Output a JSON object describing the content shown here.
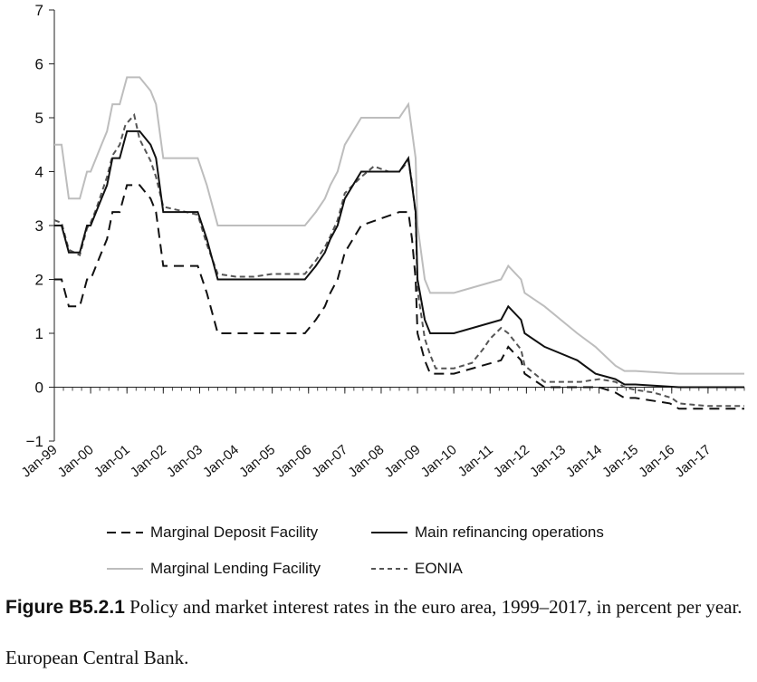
{
  "chart_data": {
    "type": "line",
    "title": "",
    "xlabel": "",
    "ylabel": "",
    "ylim": [
      -1,
      7
    ],
    "yticks": [
      -1,
      0,
      1,
      2,
      3,
      4,
      5,
      6,
      7
    ],
    "xlim": [
      1999.0,
      2018.0
    ],
    "xtick_labels": [
      "Jan-99",
      "Jan-00",
      "Jan-01",
      "Jan-02",
      "Jan-03",
      "Jan-04",
      "Jan-05",
      "Jan-06",
      "Jan-07",
      "Jan-08",
      "Jan-09",
      "Jan-10",
      "Jan-11",
      "Jan-12",
      "Jan-13",
      "Jan-14",
      "Jan-15",
      "Jan-16",
      "Jan-17"
    ],
    "xtick_values": [
      1999,
      2000,
      2001,
      2002,
      2003,
      2004,
      2005,
      2006,
      2007,
      2008,
      2009,
      2010,
      2011,
      2012,
      2013,
      2014,
      2015,
      2016,
      2017
    ],
    "grid": false,
    "legend_position": "bottom",
    "series": [
      {
        "name": "Marginal Deposit Facility",
        "color": "#111111",
        "style": "longdash",
        "x": [
          1999.0,
          1999.2,
          1999.4,
          1999.7,
          1999.9,
          2000.0,
          2000.15,
          2000.3,
          2000.45,
          2000.6,
          2000.8,
          2001.0,
          2001.35,
          2001.65,
          2001.8,
          2002.0,
          2002.95,
          2003.2,
          2003.5,
          2004.0,
          2005.9,
          2006.2,
          2006.45,
          2006.6,
          2006.8,
          2007.0,
          2007.45,
          2008.5,
          2008.75,
          2008.85,
          2008.95,
          2009.0,
          2009.2,
          2009.35,
          2010.0,
          2011.3,
          2011.5,
          2011.85,
          2011.95,
          2012.5,
          2013.5,
          2014.0,
          2014.45,
          2014.7,
          2015.0,
          2015.95,
          2016.2,
          2018.0
        ],
        "y": [
          2.0,
          2.0,
          1.5,
          1.5,
          2.0,
          2.0,
          2.25,
          2.5,
          2.75,
          3.25,
          3.25,
          3.75,
          3.75,
          3.5,
          3.25,
          2.25,
          2.25,
          1.75,
          1.0,
          1.0,
          1.0,
          1.25,
          1.5,
          1.75,
          2.0,
          2.5,
          3.0,
          3.25,
          3.25,
          2.75,
          2.0,
          1.0,
          0.5,
          0.25,
          0.25,
          0.5,
          0.75,
          0.5,
          0.25,
          0.0,
          0.0,
          0.0,
          -0.1,
          -0.2,
          -0.2,
          -0.3,
          -0.4,
          -0.4
        ]
      },
      {
        "name": "Main refinancing operations",
        "color": "#111111",
        "style": "solid",
        "x": [
          1999.0,
          1999.2,
          1999.4,
          1999.7,
          1999.9,
          2000.0,
          2000.15,
          2000.3,
          2000.45,
          2000.6,
          2000.8,
          2001.0,
          2001.35,
          2001.65,
          2001.8,
          2002.0,
          2002.95,
          2003.2,
          2003.5,
          2004.0,
          2005.9,
          2006.2,
          2006.45,
          2006.6,
          2006.8,
          2007.0,
          2007.45,
          2008.5,
          2008.75,
          2008.85,
          2008.95,
          2009.0,
          2009.2,
          2009.35,
          2010.0,
          2011.3,
          2011.5,
          2011.85,
          2011.95,
          2012.5,
          2013.4,
          2013.9,
          2014.45,
          2014.7,
          2015.0,
          2016.2,
          2018.0
        ],
        "y": [
          3.0,
          3.0,
          2.5,
          2.5,
          3.0,
          3.0,
          3.25,
          3.5,
          3.75,
          4.25,
          4.25,
          4.75,
          4.75,
          4.5,
          4.25,
          3.25,
          3.25,
          2.75,
          2.0,
          2.0,
          2.0,
          2.25,
          2.5,
          2.75,
          3.0,
          3.5,
          4.0,
          4.0,
          4.25,
          3.75,
          3.25,
          2.0,
          1.25,
          1.0,
          1.0,
          1.25,
          1.5,
          1.25,
          1.0,
          0.75,
          0.5,
          0.25,
          0.15,
          0.05,
          0.05,
          0.0,
          0.0
        ]
      },
      {
        "name": "Marginal Lending Facility",
        "color": "#bdbdbd",
        "style": "solid",
        "x": [
          1999.0,
          1999.2,
          1999.4,
          1999.7,
          1999.9,
          2000.0,
          2000.15,
          2000.3,
          2000.45,
          2000.6,
          2000.8,
          2001.0,
          2001.35,
          2001.65,
          2001.8,
          2002.0,
          2002.95,
          2003.2,
          2003.5,
          2004.0,
          2005.9,
          2006.2,
          2006.45,
          2006.6,
          2006.8,
          2007.0,
          2007.45,
          2008.5,
          2008.75,
          2008.85,
          2008.95,
          2009.0,
          2009.2,
          2009.35,
          2010.0,
          2011.3,
          2011.5,
          2011.85,
          2011.95,
          2012.5,
          2013.4,
          2013.9,
          2014.45,
          2014.7,
          2015.0,
          2016.2,
          2018.0
        ],
        "y": [
          4.5,
          4.5,
          3.5,
          3.5,
          4.0,
          4.0,
          4.25,
          4.5,
          4.75,
          5.25,
          5.25,
          5.75,
          5.75,
          5.5,
          5.25,
          4.25,
          4.25,
          3.75,
          3.0,
          3.0,
          3.0,
          3.25,
          3.5,
          3.75,
          4.0,
          4.5,
          5.0,
          5.0,
          5.25,
          4.75,
          4.25,
          3.0,
          2.0,
          1.75,
          1.75,
          2.0,
          2.25,
          2.0,
          1.75,
          1.5,
          1.0,
          0.75,
          0.4,
          0.3,
          0.3,
          0.25,
          0.25
        ]
      },
      {
        "name": "EONIA",
        "color": "#555555",
        "style": "shortdash",
        "x": [
          1999.0,
          1999.2,
          1999.4,
          1999.7,
          1999.9,
          2000.0,
          2000.15,
          2000.3,
          2000.45,
          2000.6,
          2000.8,
          2000.95,
          2001.0,
          2001.2,
          2001.35,
          2001.5,
          2001.65,
          2001.8,
          2002.0,
          2002.95,
          2003.2,
          2003.5,
          2004.0,
          2004.5,
          2005.0,
          2005.5,
          2005.9,
          2006.2,
          2006.45,
          2006.6,
          2006.8,
          2007.0,
          2007.45,
          2007.8,
          2008.2,
          2008.5,
          2008.75,
          2008.85,
          2008.95,
          2009.0,
          2009.2,
          2009.35,
          2009.5,
          2010.0,
          2010.5,
          2010.8,
          2011.0,
          2011.3,
          2011.5,
          2011.85,
          2011.95,
          2012.5,
          2013.0,
          2013.5,
          2014.0,
          2014.45,
          2014.7,
          2015.0,
          2015.5,
          2016.0,
          2016.2,
          2017.0,
          2018.0
        ],
        "y": [
          3.1,
          3.05,
          2.55,
          2.45,
          2.95,
          3.05,
          3.3,
          3.6,
          3.9,
          4.3,
          4.5,
          4.85,
          4.9,
          5.05,
          4.6,
          4.4,
          4.2,
          3.9,
          3.35,
          3.2,
          2.65,
          2.1,
          2.05,
          2.05,
          2.1,
          2.1,
          2.1,
          2.35,
          2.6,
          2.8,
          3.1,
          3.6,
          3.9,
          4.1,
          4.0,
          4.0,
          4.2,
          3.8,
          3.2,
          1.8,
          0.9,
          0.6,
          0.35,
          0.35,
          0.45,
          0.7,
          0.9,
          1.1,
          1.0,
          0.7,
          0.4,
          0.1,
          0.1,
          0.1,
          0.15,
          0.1,
          0.0,
          -0.05,
          -0.1,
          -0.2,
          -0.3,
          -0.35,
          -0.35
        ]
      }
    ]
  },
  "legend": {
    "items": [
      {
        "label": "Marginal Deposit Facility"
      },
      {
        "label": "Main refinancing operations"
      },
      {
        "label": "Marginal Lending Facility"
      },
      {
        "label": "EONIA"
      }
    ]
  },
  "caption": {
    "figure_label": "Figure B5.2.1",
    "text": "Policy and market interest rates in the euro area, 1999–2017, in percent per year."
  },
  "source": "European Central Bank."
}
